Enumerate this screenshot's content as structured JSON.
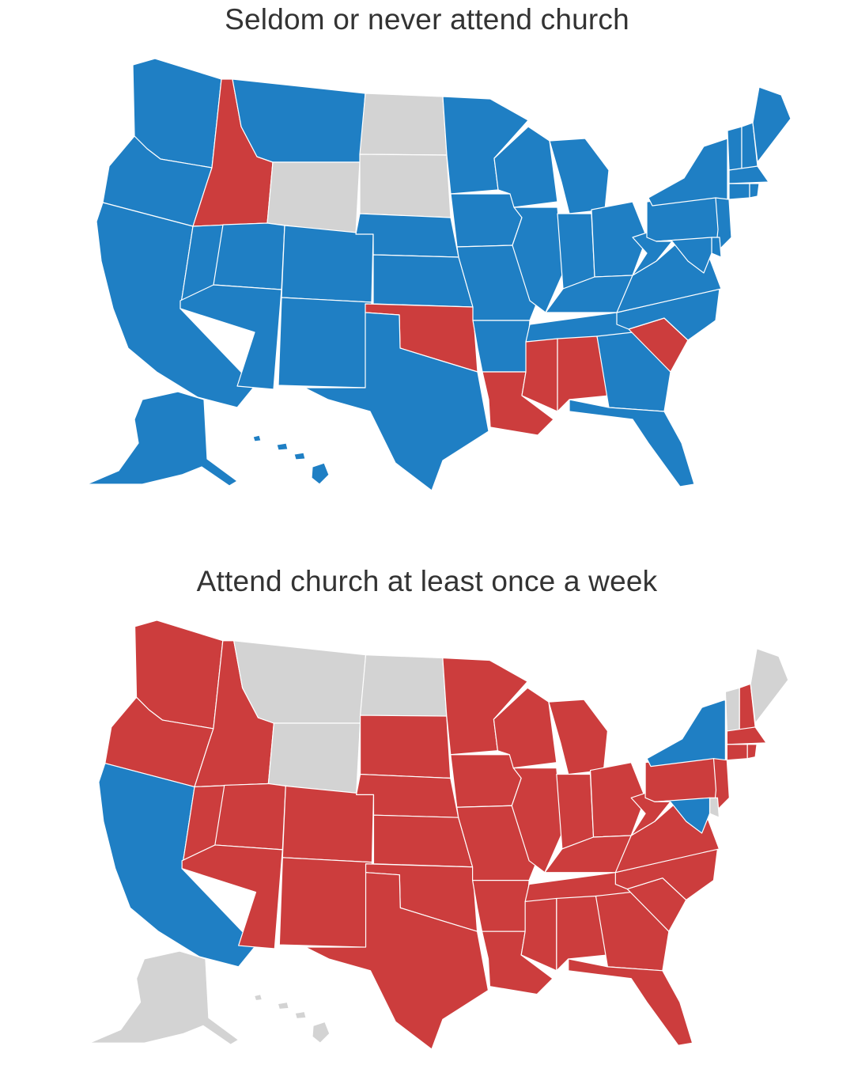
{
  "colors": {
    "red": "#CC3D3D",
    "blue": "#1F7FC4",
    "gray": "#D3D3D3"
  },
  "maps": [
    {
      "title": "Seldom or never attend church",
      "states": {
        "WA": "blue",
        "OR": "blue",
        "CA": "blue",
        "ID": "red",
        "NV": "blue",
        "MT": "blue",
        "WY": "gray",
        "UT": "blue",
        "AZ": "blue",
        "CO": "blue",
        "NM": "blue",
        "ND": "gray",
        "SD": "gray",
        "NE": "blue",
        "KS": "blue",
        "OK": "red",
        "TX": "blue",
        "MN": "blue",
        "IA": "blue",
        "MO": "blue",
        "AR": "blue",
        "LA": "red",
        "WI": "blue",
        "IL": "blue",
        "MI": "blue",
        "IN": "blue",
        "OH": "blue",
        "KY": "blue",
        "TN": "blue",
        "MS": "red",
        "AL": "red",
        "GA": "blue",
        "FL": "blue",
        "SC": "red",
        "NC": "blue",
        "VA": "blue",
        "WV": "blue",
        "PA": "blue",
        "NY": "blue",
        "VT": "blue",
        "NH": "blue",
        "ME": "blue",
        "MA": "blue",
        "NJ": "blue",
        "MD": "blue",
        "DE": "blue",
        "CT": "blue",
        "RI": "blue",
        "AK": "blue",
        "HI": "blue"
      }
    },
    {
      "title": "Attend church at least once a week",
      "states": {
        "WA": "red",
        "OR": "red",
        "CA": "blue",
        "ID": "red",
        "NV": "red",
        "MT": "gray",
        "WY": "gray",
        "UT": "red",
        "AZ": "red",
        "CO": "red",
        "NM": "red",
        "ND": "gray",
        "SD": "red",
        "NE": "red",
        "KS": "red",
        "OK": "red",
        "TX": "red",
        "MN": "red",
        "IA": "red",
        "MO": "red",
        "AR": "red",
        "LA": "red",
        "WI": "red",
        "IL": "red",
        "MI": "red",
        "IN": "red",
        "OH": "red",
        "KY": "red",
        "TN": "red",
        "MS": "red",
        "AL": "red",
        "GA": "red",
        "FL": "red",
        "SC": "red",
        "NC": "red",
        "VA": "red",
        "WV": "red",
        "PA": "red",
        "NY": "blue",
        "VT": "gray",
        "NH": "red",
        "ME": "gray",
        "MA": "red",
        "NJ": "red",
        "MD": "blue",
        "DE": "gray",
        "CT": "red",
        "RI": "red",
        "AK": "gray",
        "HI": "gray"
      }
    }
  ]
}
